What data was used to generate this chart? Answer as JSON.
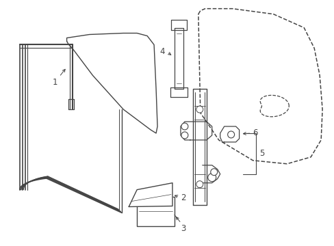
{
  "background_color": "#ffffff",
  "line_color": "#444444",
  "figsize": [
    4.89,
    3.6
  ],
  "dpi": 100,
  "font_size": 8.5
}
